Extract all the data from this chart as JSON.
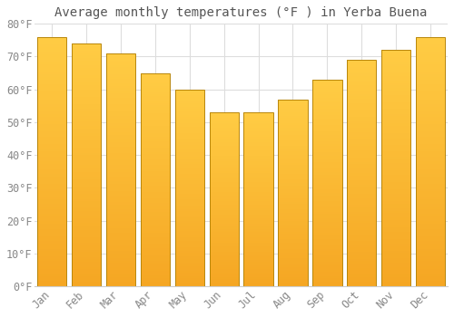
{
  "title": "Average monthly temperatures (°F ) in Yerba Buena",
  "months": [
    "Jan",
    "Feb",
    "Mar",
    "Apr",
    "May",
    "Jun",
    "Jul",
    "Aug",
    "Sep",
    "Oct",
    "Nov",
    "Dec"
  ],
  "values": [
    76,
    74,
    71,
    65,
    60,
    53,
    53,
    57,
    63,
    69,
    72,
    76
  ],
  "bar_color_top": "#FFCC44",
  "bar_color_bottom": "#F5A623",
  "bar_edge_color": "#B8860B",
  "ylim": [
    0,
    80
  ],
  "yticks": [
    0,
    10,
    20,
    30,
    40,
    50,
    60,
    70,
    80
  ],
  "ytick_labels": [
    "0°F",
    "10°F",
    "20°F",
    "30°F",
    "40°F",
    "50°F",
    "60°F",
    "70°F",
    "80°F"
  ],
  "background_color": "#ffffff",
  "grid_color": "#dddddd",
  "title_fontsize": 10,
  "tick_fontsize": 8.5,
  "font_family": "monospace",
  "bar_width": 0.85
}
